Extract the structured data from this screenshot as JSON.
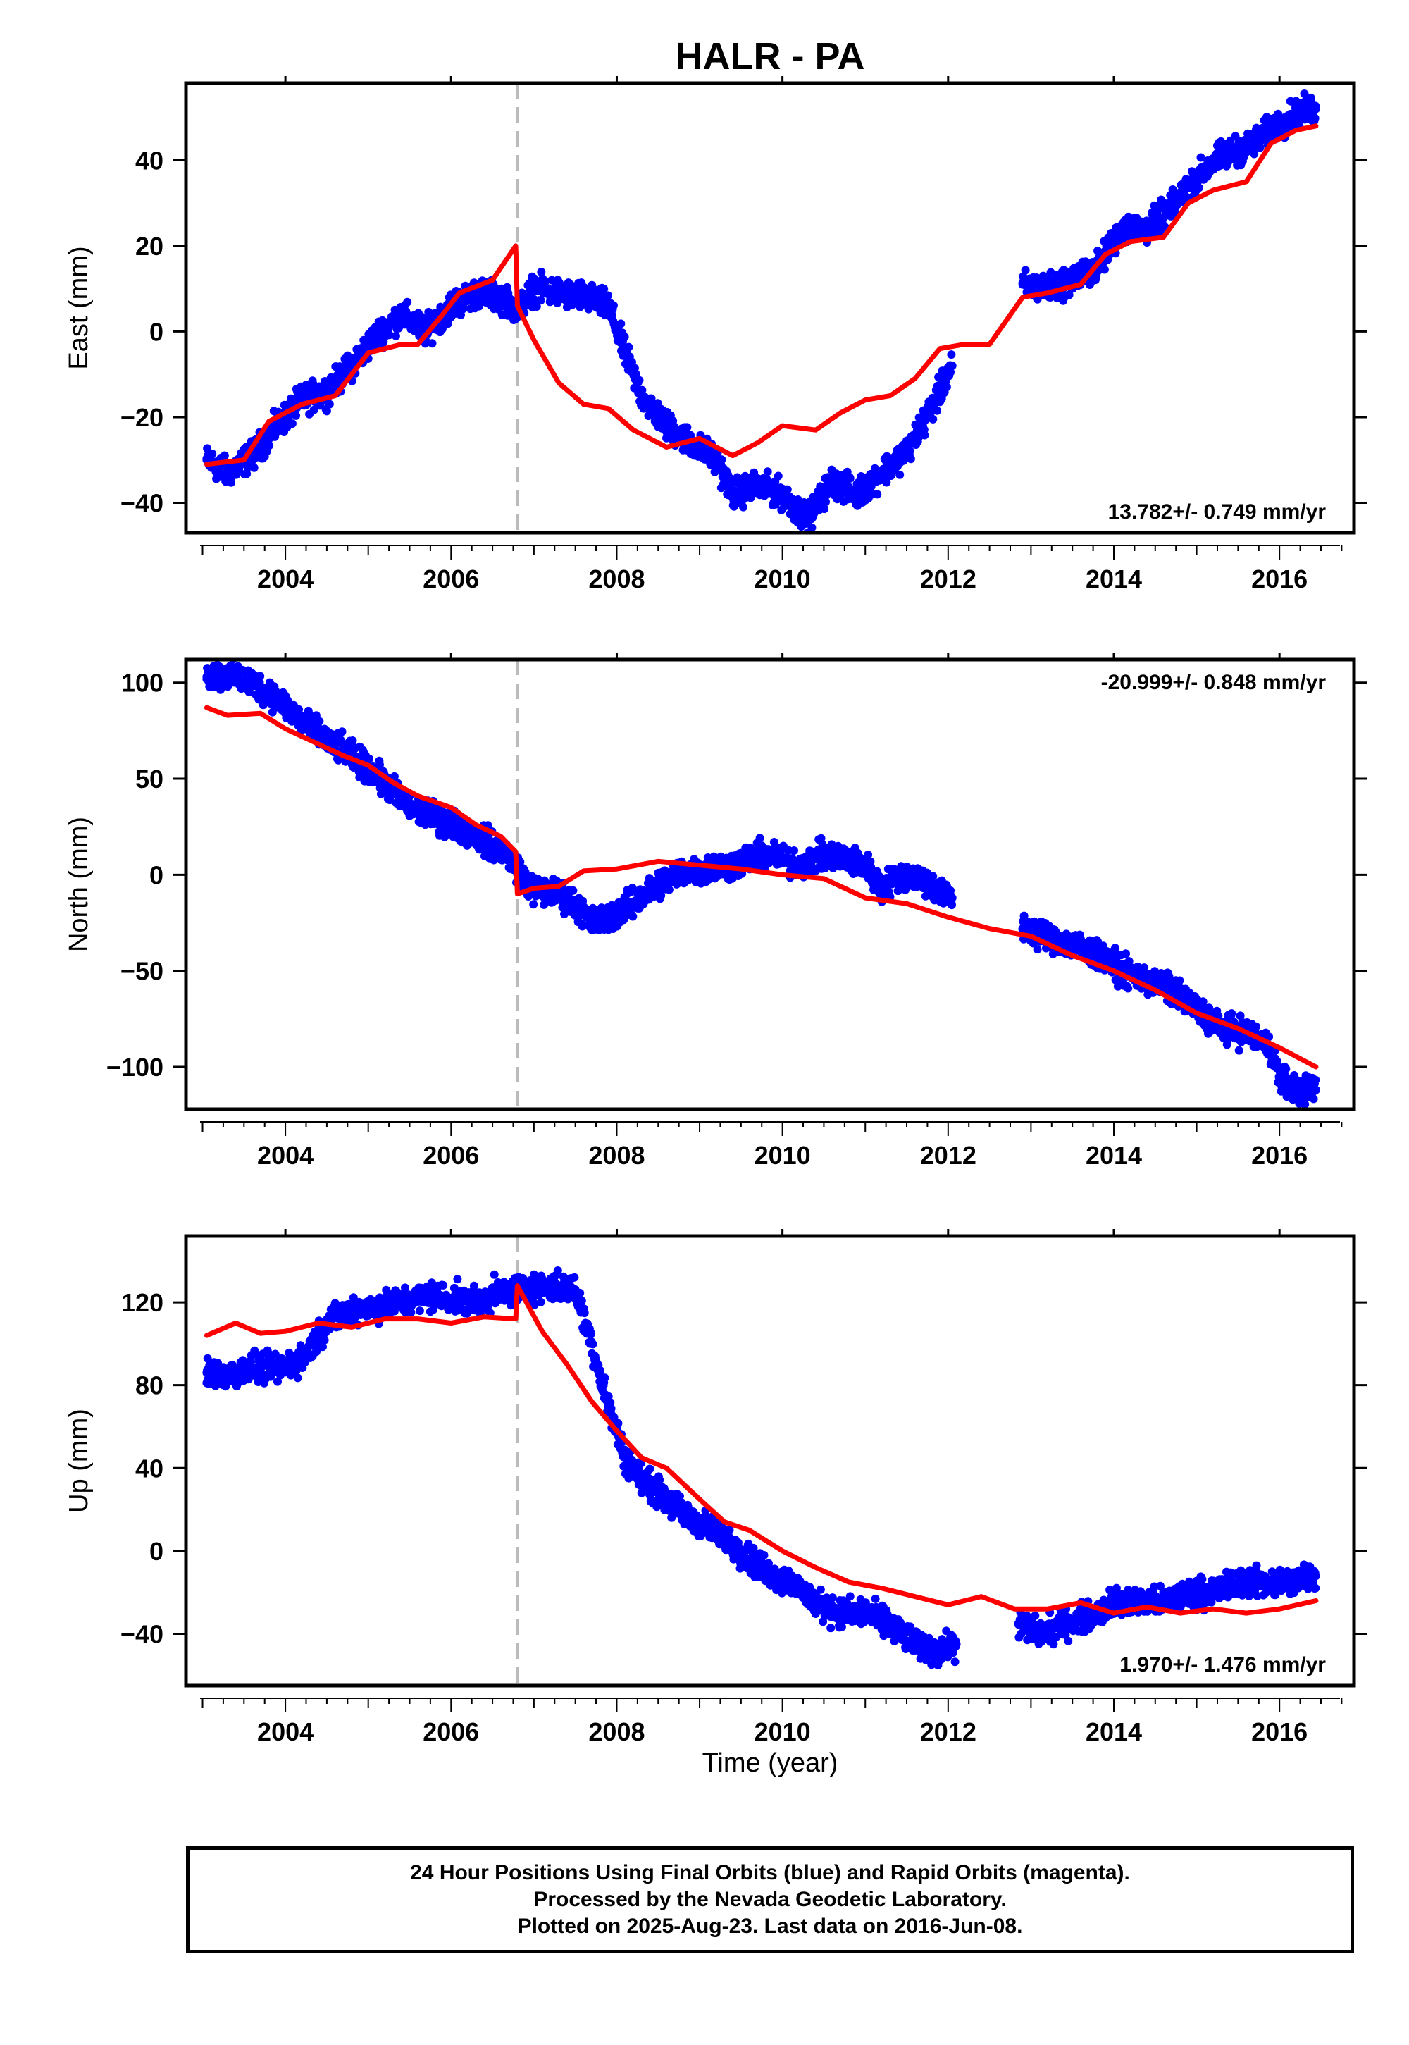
{
  "title": "HALR - PA",
  "xlabel": "Time (year)",
  "caption": {
    "line1": "24 Hour Positions Using Final Orbits (blue) and Rapid Orbits (magenta).",
    "line2": "Processed by the Nevada Geodetic Laboratory.",
    "line3": "Plotted on 2025-Aug-23. Last data on 2016-Jun-08."
  },
  "colors": {
    "data": "#0000ff",
    "model": "#ff0000",
    "break_line": "#bbbbbb"
  },
  "chart_data": [
    {
      "type": "scatter",
      "component": "east",
      "ylabel": "East (mm)",
      "xlim": [
        2002.8,
        2016.9
      ],
      "ylim": [
        -47,
        58
      ],
      "xticks": [
        2004,
        2006,
        2008,
        2010,
        2012,
        2014,
        2016
      ],
      "yticks": [
        -40,
        -20,
        0,
        20,
        40
      ],
      "rate_text": "13.782+/- 0.749 mm/yr",
      "rate_position": "bottom-right",
      "break_epoch": 2006.8,
      "data_x": [
        2003.05,
        2003.3,
        2003.6,
        2003.9,
        2004.2,
        2004.5,
        2004.8,
        2005.1,
        2005.4,
        2005.7,
        2006.0,
        2006.3,
        2006.6,
        2006.8,
        2007.0,
        2007.3,
        2007.6,
        2007.9,
        2008.1,
        2008.3,
        2008.6,
        2008.9,
        2009.2,
        2009.4,
        2009.7,
        2010.0,
        2010.3,
        2010.6,
        2010.9,
        2011.2,
        2011.5,
        2011.8,
        2012.05,
        2012.9,
        2013.2,
        2013.5,
        2013.8,
        2014.1,
        2014.4,
        2014.7,
        2015.0,
        2015.3,
        2015.6,
        2015.9,
        2016.2,
        2016.44
      ],
      "data_y": [
        -30,
        -33,
        -29,
        -22,
        -16,
        -14,
        -8,
        -1,
        4,
        0,
        6,
        9,
        8,
        5,
        10,
        9,
        8,
        6,
        -5,
        -15,
        -22,
        -26,
        -30,
        -38,
        -36,
        -38,
        -44,
        -35,
        -38,
        -33,
        -28,
        -18,
        -8,
        11,
        10,
        12,
        15,
        24,
        24,
        29,
        36,
        41,
        43,
        47,
        51,
        52
      ],
      "model_x": [
        2003.05,
        2003.5,
        2003.8,
        2004.2,
        2004.6,
        2005.0,
        2005.4,
        2005.6,
        2005.9,
        2006.1,
        2006.5,
        2006.78,
        2006.8,
        2007.0,
        2007.3,
        2007.6,
        2007.9,
        2008.2,
        2008.6,
        2009.0,
        2009.4,
        2009.7,
        2010.0,
        2010.4,
        2010.7,
        2011.0,
        2011.3,
        2011.6,
        2011.9,
        2012.2,
        2012.5,
        2012.9,
        2013.2,
        2013.6,
        2013.9,
        2014.2,
        2014.6,
        2014.9,
        2015.2,
        2015.6,
        2015.9,
        2016.2,
        2016.44
      ],
      "model_y": [
        -31,
        -30,
        -21,
        -17,
        -15,
        -5,
        -3,
        -3,
        4,
        9,
        12,
        20,
        6,
        -2,
        -12,
        -17,
        -18,
        -23,
        -27,
        -25,
        -29,
        -26,
        -22,
        -23,
        -19,
        -16,
        -15,
        -11,
        -4,
        -3,
        -3,
        8,
        9,
        11,
        18,
        21,
        22,
        30,
        33,
        35,
        44,
        47,
        48
      ]
    },
    {
      "type": "scatter",
      "component": "north",
      "ylabel": "North (mm)",
      "xlim": [
        2002.8,
        2016.9
      ],
      "ylim": [
        -122,
        112
      ],
      "xticks": [
        2004,
        2006,
        2008,
        2010,
        2012,
        2014,
        2016
      ],
      "yticks": [
        -100,
        -50,
        0,
        50,
        100
      ],
      "rate_text": "-20.999+/- 0.848 mm/yr",
      "rate_position": "top-right",
      "break_epoch": 2006.8,
      "data_x": [
        2003.05,
        2003.3,
        2003.6,
        2003.9,
        2004.2,
        2004.5,
        2004.8,
        2005.0,
        2005.2,
        2005.5,
        2005.8,
        2006.1,
        2006.4,
        2006.7,
        2006.85,
        2007.0,
        2007.3,
        2007.5,
        2007.7,
        2007.9,
        2008.2,
        2008.5,
        2008.8,
        2009.1,
        2009.4,
        2009.7,
        2009.9,
        2010.2,
        2010.5,
        2010.8,
        2011.0,
        2011.2,
        2011.4,
        2011.7,
        2011.9,
        2012.05,
        2012.9,
        2013.2,
        2013.5,
        2013.8,
        2014.1,
        2014.4,
        2014.7,
        2015.0,
        2015.3,
        2015.6,
        2015.9,
        2016.0,
        2016.2,
        2016.44
      ],
      "data_y": [
        103,
        104,
        100,
        92,
        80,
        70,
        62,
        55,
        48,
        35,
        30,
        25,
        18,
        10,
        0,
        -8,
        -10,
        -15,
        -25,
        -22,
        -15,
        -5,
        2,
        3,
        5,
        10,
        10,
        5,
        10,
        8,
        5,
        -8,
        0,
        -2,
        -10,
        -12,
        -28,
        -32,
        -36,
        -42,
        -50,
        -55,
        -60,
        -70,
        -80,
        -82,
        -90,
        -105,
        -112,
        -112
      ],
      "model_x": [
        2003.05,
        2003.3,
        2003.7,
        2004.0,
        2004.3,
        2004.7,
        2005.0,
        2005.3,
        2005.6,
        2006.0,
        2006.3,
        2006.6,
        2006.78,
        2006.8,
        2007.0,
        2007.3,
        2007.6,
        2008.0,
        2008.5,
        2009.0,
        2009.5,
        2010.0,
        2010.5,
        2011.0,
        2011.5,
        2012.0,
        2012.5,
        2013.0,
        2013.5,
        2014.0,
        2014.5,
        2015.0,
        2015.5,
        2016.0,
        2016.44
      ],
      "model_y": [
        87,
        83,
        84,
        76,
        70,
        62,
        57,
        48,
        41,
        35,
        26,
        20,
        12,
        -10,
        -7,
        -6,
        2,
        3,
        7,
        5,
        3,
        0,
        -2,
        -12,
        -15,
        -22,
        -28,
        -32,
        -42,
        -50,
        -60,
        -72,
        -80,
        -90,
        -100
      ]
    },
    {
      "type": "scatter",
      "component": "up",
      "ylabel": "Up (mm)",
      "xlim": [
        2002.8,
        2016.9
      ],
      "ylim": [
        -65,
        152
      ],
      "xticks": [
        2004,
        2006,
        2008,
        2010,
        2012,
        2014,
        2016
      ],
      "yticks": [
        -40,
        0,
        40,
        80,
        120
      ],
      "rate_text": "1.970+/- 1.476 mm/yr",
      "rate_position": "bottom-right",
      "break_epoch": 2006.8,
      "data_x": [
        2003.05,
        2003.3,
        2003.6,
        2003.9,
        2004.2,
        2004.5,
        2004.8,
        2005.1,
        2005.4,
        2005.7,
        2006.0,
        2006.3,
        2006.6,
        2006.9,
        2007.2,
        2007.5,
        2007.7,
        2007.9,
        2008.1,
        2008.3,
        2008.6,
        2008.9,
        2009.2,
        2009.5,
        2009.8,
        2010.1,
        2010.4,
        2010.7,
        2011.0,
        2011.3,
        2011.6,
        2011.9,
        2012.1,
        2012.85,
        2013.1,
        2013.4,
        2013.7,
        2014.0,
        2014.3,
        2014.6,
        2014.9,
        2015.2,
        2015.5,
        2015.8,
        2016.1,
        2016.44
      ],
      "data_y": [
        86,
        85,
        88,
        88,
        92,
        110,
        117,
        118,
        120,
        123,
        122,
        120,
        125,
        127,
        128,
        126,
        100,
        70,
        45,
        35,
        25,
        15,
        10,
        0,
        -10,
        -15,
        -25,
        -30,
        -30,
        -35,
        -45,
        -48,
        -45,
        -35,
        -40,
        -35,
        -32,
        -25,
        -25,
        -25,
        -20,
        -20,
        -15,
        -15,
        -15,
        -12
      ],
      "model_x": [
        2003.05,
        2003.4,
        2003.7,
        2004.0,
        2004.4,
        2004.8,
        2005.2,
        2005.6,
        2006.0,
        2006.4,
        2006.78,
        2006.8,
        2007.1,
        2007.4,
        2007.7,
        2008.0,
        2008.3,
        2008.6,
        2009.0,
        2009.3,
        2009.6,
        2010.0,
        2010.4,
        2010.8,
        2011.2,
        2011.6,
        2012.0,
        2012.4,
        2012.8,
        2013.2,
        2013.6,
        2014.0,
        2014.4,
        2014.8,
        2015.2,
        2015.6,
        2016.0,
        2016.44
      ],
      "model_y": [
        104,
        110,
        105,
        106,
        110,
        108,
        112,
        112,
        110,
        113,
        112,
        128,
        106,
        90,
        72,
        58,
        45,
        40,
        25,
        14,
        10,
        0,
        -8,
        -15,
        -18,
        -22,
        -26,
        -22,
        -28,
        -28,
        -25,
        -30,
        -27,
        -30,
        -28,
        -30,
        -28,
        -24
      ]
    }
  ]
}
